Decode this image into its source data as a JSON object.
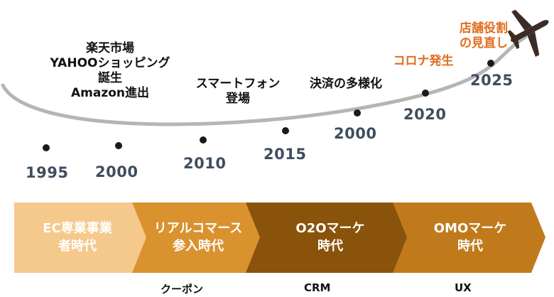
{
  "years": [
    "1995",
    "2000",
    "2010",
    "2015",
    "2000",
    "2020",
    "2025"
  ],
  "events": {
    "ec_launch": [
      "楽天市場",
      "YAHOOショッピング",
      "誕生",
      "Amazon進出"
    ],
    "smartphone": [
      "スマートフォン",
      "登場"
    ],
    "payments": [
      "決済の多様化"
    ],
    "covid": [
      "コロナ発生"
    ],
    "store_role": [
      "店舗役割",
      "の見直し"
    ]
  },
  "eras": [
    {
      "lines": [
        "EC専業事業",
        "者時代"
      ],
      "color": "#f5c98b"
    },
    {
      "lines": [
        "リアルコマース",
        "参入時代"
      ],
      "color": "#d9922e"
    },
    {
      "lines": [
        "O2Oマーケ",
        "時代"
      ],
      "color": "#8a530c"
    },
    {
      "lines": [
        "OMOマーケ",
        "時代"
      ],
      "color": "#c07a1c"
    }
  ],
  "bottom_labels": [
    "クーポン",
    "CRM",
    "UX"
  ],
  "colors": {
    "year_text": "#3f4d5e",
    "highlight": "#e36c1d",
    "plane": "#3b2d25",
    "arc": "#b5b5b5"
  },
  "icons": [
    "airplane-icon"
  ]
}
